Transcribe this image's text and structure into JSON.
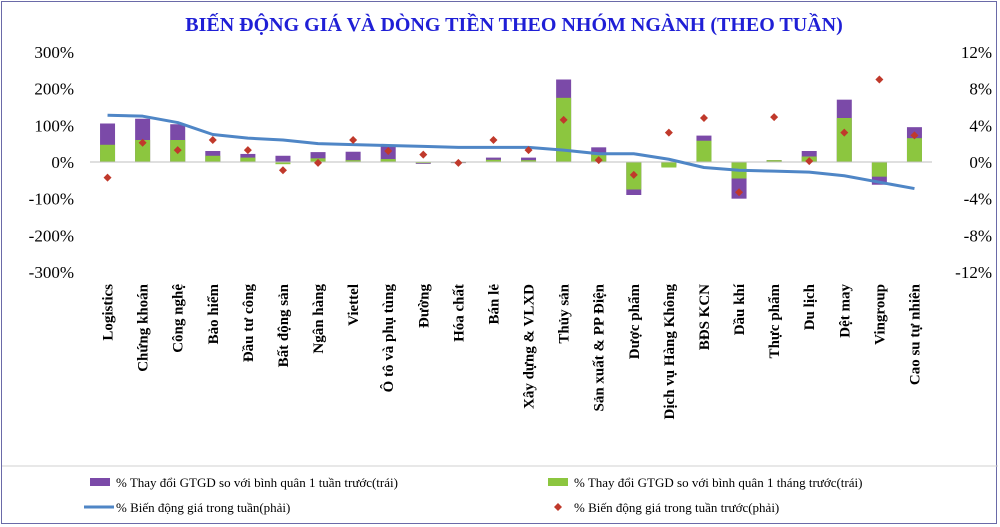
{
  "chart_data": {
    "type": "bar",
    "title": "BIẾN ĐỘNG GIÁ VÀ DÒNG TIỀN THEO NHÓM NGÀNH (THEO TUẦN)",
    "categories": [
      "Logistics",
      "Chứng khoán",
      "Công nghệ",
      "Bảo hiểm",
      "Đầu tư công",
      "Bất động sản",
      "Ngân hàng",
      "Viettel",
      "Ô tô và phụ tùng",
      "Đường",
      "Hóa chất",
      "Bán lẻ",
      "Xây dựng & VLXD",
      "Thủy sản",
      "Sản xuất & PP Điện",
      "Dược phẩm",
      "Dịch vụ Hàng Không",
      "BĐS KCN",
      "Dầu khí",
      "Thực phẩm",
      "Du lịch",
      "Dệt may",
      "Vingroup",
      "Cao su tự nhiên"
    ],
    "y_left": {
      "ylim": [
        -300,
        300
      ],
      "ticks": [
        "300%",
        "200%",
        "100%",
        "0%",
        "-100%",
        "-200%",
        "-300%"
      ]
    },
    "y_right": {
      "ylim": [
        -12,
        12
      ],
      "ticks": [
        "12%",
        "8%",
        "4%",
        "0%",
        "-4%",
        "-8%",
        "-12%"
      ]
    },
    "grid": false,
    "legend_position": "bottom",
    "series": [
      {
        "name": "% Thay đổi GTGD so với bình quân 1 tuần trước(trái)",
        "type": "bar",
        "axis": "left",
        "color": "#7b4aa8",
        "values": [
          105,
          118,
          103,
          30,
          22,
          17,
          27,
          28,
          44,
          -5,
          -3,
          12,
          12,
          225,
          40,
          -90,
          -12,
          72,
          -100,
          5,
          30,
          170,
          -62,
          95
        ]
      },
      {
        "name": "% Thay đổi GTGD so với bình quân 1 tháng trước(trái)",
        "type": "bar",
        "axis": "left",
        "color": "#8cc63f",
        "values": [
          47,
          60,
          60,
          17,
          12,
          -6,
          10,
          5,
          8,
          -3,
          -2,
          6,
          5,
          175,
          20,
          -75,
          -15,
          58,
          -45,
          5,
          15,
          120,
          -40,
          65
        ]
      },
      {
        "name": "% Biến động giá trong tuần(phải)",
        "type": "line",
        "axis": "right",
        "color": "#4f86c6",
        "values": [
          5.1,
          5.0,
          4.3,
          3.0,
          2.6,
          2.4,
          2.0,
          1.9,
          1.8,
          1.7,
          1.6,
          1.6,
          1.6,
          1.3,
          0.9,
          0.9,
          0.3,
          -0.6,
          -0.9,
          -1.0,
          -1.1,
          -1.5,
          -2.2,
          -2.9
        ]
      },
      {
        "name": "% Biến động giá trong tuần trước(phải)",
        "type": "scatter",
        "axis": "right",
        "color": "#c0392b",
        "values": [
          -1.7,
          2.1,
          1.3,
          2.4,
          1.3,
          -0.9,
          -0.1,
          2.4,
          1.2,
          0.8,
          -0.1,
          2.4,
          1.3,
          4.6,
          0.2,
          -1.4,
          3.2,
          4.8,
          -3.3,
          4.9,
          0.1,
          3.2,
          9.0,
          2.9
        ]
      }
    ]
  }
}
